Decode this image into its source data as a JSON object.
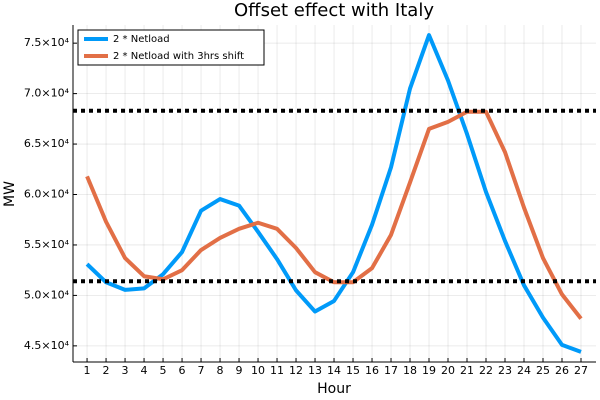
{
  "chart_data": {
    "type": "line",
    "title": "Offset effect with Italy",
    "x_label": "Hour",
    "y_label": "MW",
    "x": [
      1,
      2,
      3,
      4,
      5,
      6,
      7,
      8,
      9,
      10,
      11,
      12,
      13,
      14,
      15,
      16,
      17,
      18,
      19,
      20,
      21,
      22,
      23,
      24,
      25,
      26,
      27
    ],
    "series": [
      {
        "name": "2 * Netload",
        "color": "#009af9",
        "values": [
          53100,
          51300,
          50550,
          50700,
          52100,
          54300,
          58400,
          59550,
          58900,
          56300,
          53600,
          50500,
          48400,
          49450,
          52300,
          57000,
          62700,
          70500,
          75800,
          71300,
          66000,
          60250,
          55400,
          51000,
          47800,
          45100,
          44400
        ]
      },
      {
        "name": "2 * Netload with 3hrs shift",
        "color": "#e26f46",
        "values": [
          61800,
          57300,
          53700,
          51900,
          51600,
          52500,
          54500,
          55700,
          56600,
          57200,
          56600,
          54700,
          52300,
          51300,
          51300,
          52700,
          56000,
          61200,
          66500,
          67200,
          68200,
          68200,
          64200,
          58700,
          53700,
          50100,
          47700
        ]
      }
    ],
    "hlines": [
      68300,
      51400
    ],
    "hline_color": "#000000",
    "xlim": [
      0.26,
      27.79
    ],
    "ylim": [
      43400,
      76800
    ],
    "xticks": [
      1,
      2,
      3,
      4,
      5,
      6,
      7,
      8,
      9,
      10,
      11,
      12,
      13,
      14,
      15,
      16,
      17,
      18,
      19,
      20,
      21,
      22,
      23,
      24,
      25,
      26,
      27
    ],
    "yticks": [
      {
        "value": 45000,
        "label": "4.5×10⁴"
      },
      {
        "value": 50000,
        "label": "5.0×10⁴"
      },
      {
        "value": 55000,
        "label": "5.5×10⁴"
      },
      {
        "value": 60000,
        "label": "6.0×10⁴"
      },
      {
        "value": 65000,
        "label": "6.5×10⁴"
      },
      {
        "value": 70000,
        "label": "7.0×10⁴"
      },
      {
        "value": 75000,
        "label": "7.5×10⁴"
      }
    ],
    "grid": true,
    "legend": "top-left"
  }
}
